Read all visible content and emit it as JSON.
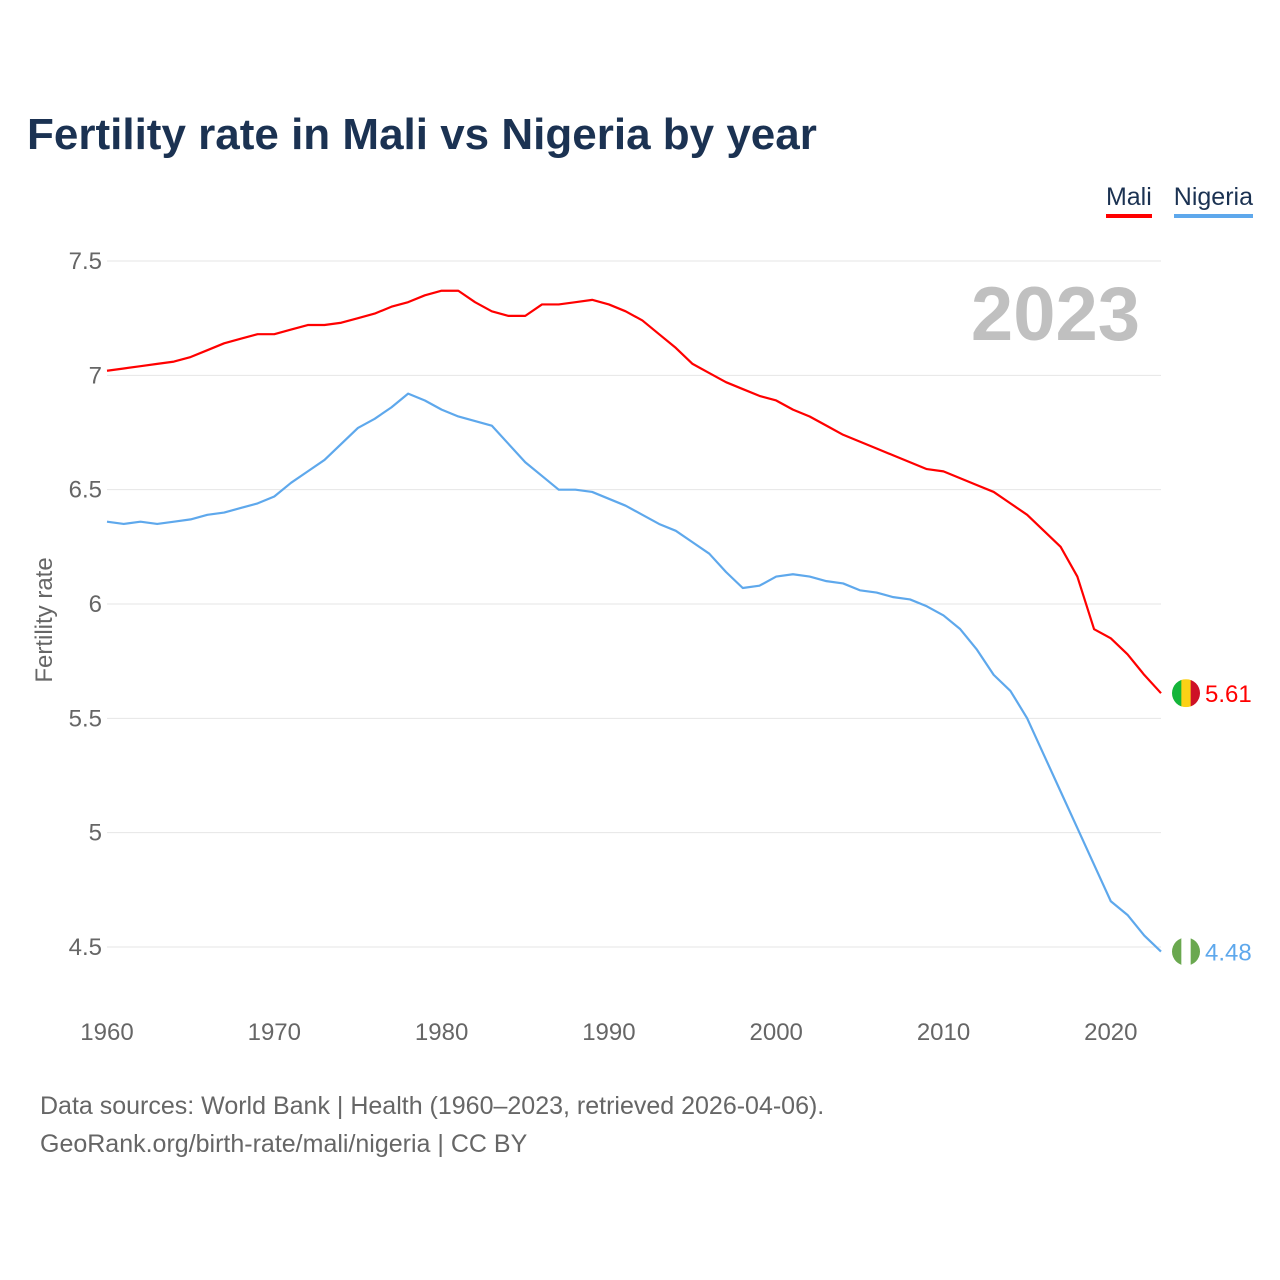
{
  "chart_data": {
    "type": "line",
    "title": "Fertility rate in Mali vs Nigeria by year",
    "xlabel": "",
    "ylabel": "Fertility rate",
    "year_label": "2023",
    "xlim": [
      1960,
      2023
    ],
    "ylim": [
      4.5,
      7.5
    ],
    "x_ticks": [
      "1960",
      "1970",
      "1980",
      "1990",
      "2000",
      "2010",
      "2020"
    ],
    "y_ticks": [
      "4.5",
      "5",
      "5.5",
      "6",
      "6.5",
      "7",
      "7.5"
    ],
    "grid": true,
    "legend_position": "top-right",
    "x": [
      1960,
      1961,
      1962,
      1963,
      1964,
      1965,
      1966,
      1967,
      1968,
      1969,
      1970,
      1971,
      1972,
      1973,
      1974,
      1975,
      1976,
      1977,
      1978,
      1979,
      1980,
      1981,
      1982,
      1983,
      1984,
      1985,
      1986,
      1987,
      1988,
      1989,
      1990,
      1991,
      1992,
      1993,
      1994,
      1995,
      1996,
      1997,
      1998,
      1999,
      2000,
      2001,
      2002,
      2003,
      2004,
      2005,
      2006,
      2007,
      2008,
      2009,
      2010,
      2011,
      2012,
      2013,
      2014,
      2015,
      2016,
      2017,
      2018,
      2019,
      2020,
      2021,
      2022,
      2023
    ],
    "series": [
      {
        "name": "Mali",
        "color": "#ff0000",
        "end_label": "5.61",
        "values": [
          7.02,
          7.03,
          7.04,
          7.05,
          7.06,
          7.08,
          7.11,
          7.14,
          7.16,
          7.18,
          7.18,
          7.2,
          7.22,
          7.22,
          7.23,
          7.25,
          7.27,
          7.3,
          7.32,
          7.35,
          7.37,
          7.37,
          7.32,
          7.28,
          7.26,
          7.26,
          7.31,
          7.31,
          7.32,
          7.33,
          7.31,
          7.28,
          7.24,
          7.18,
          7.12,
          7.05,
          7.01,
          6.97,
          6.94,
          6.91,
          6.89,
          6.85,
          6.82,
          6.78,
          6.74,
          6.71,
          6.68,
          6.65,
          6.62,
          6.59,
          6.58,
          6.55,
          6.52,
          6.49,
          6.44,
          6.39,
          6.32,
          6.25,
          6.12,
          5.89,
          5.85,
          5.78,
          5.69,
          5.61
        ]
      },
      {
        "name": "Nigeria",
        "color": "#5ea8ec",
        "end_label": "4.48",
        "values": [
          6.36,
          6.35,
          6.36,
          6.35,
          6.36,
          6.37,
          6.39,
          6.4,
          6.42,
          6.44,
          6.47,
          6.53,
          6.58,
          6.63,
          6.7,
          6.77,
          6.81,
          6.86,
          6.92,
          6.89,
          6.85,
          6.82,
          6.8,
          6.78,
          6.7,
          6.62,
          6.56,
          6.5,
          6.5,
          6.49,
          6.46,
          6.43,
          6.39,
          6.35,
          6.32,
          6.27,
          6.22,
          6.14,
          6.07,
          6.08,
          6.12,
          6.13,
          6.12,
          6.1,
          6.09,
          6.06,
          6.05,
          6.03,
          6.02,
          5.99,
          5.95,
          5.89,
          5.8,
          5.69,
          5.62,
          5.5,
          5.34,
          5.18,
          5.02,
          4.86,
          4.7,
          4.64,
          4.55,
          4.48
        ]
      }
    ]
  },
  "footer": {
    "line1": "Data sources: World Bank | Health (1960–2023, retrieved 2026-04-06).",
    "line2": "GeoRank.org/birth-rate/mali/nigeria | CC BY"
  }
}
